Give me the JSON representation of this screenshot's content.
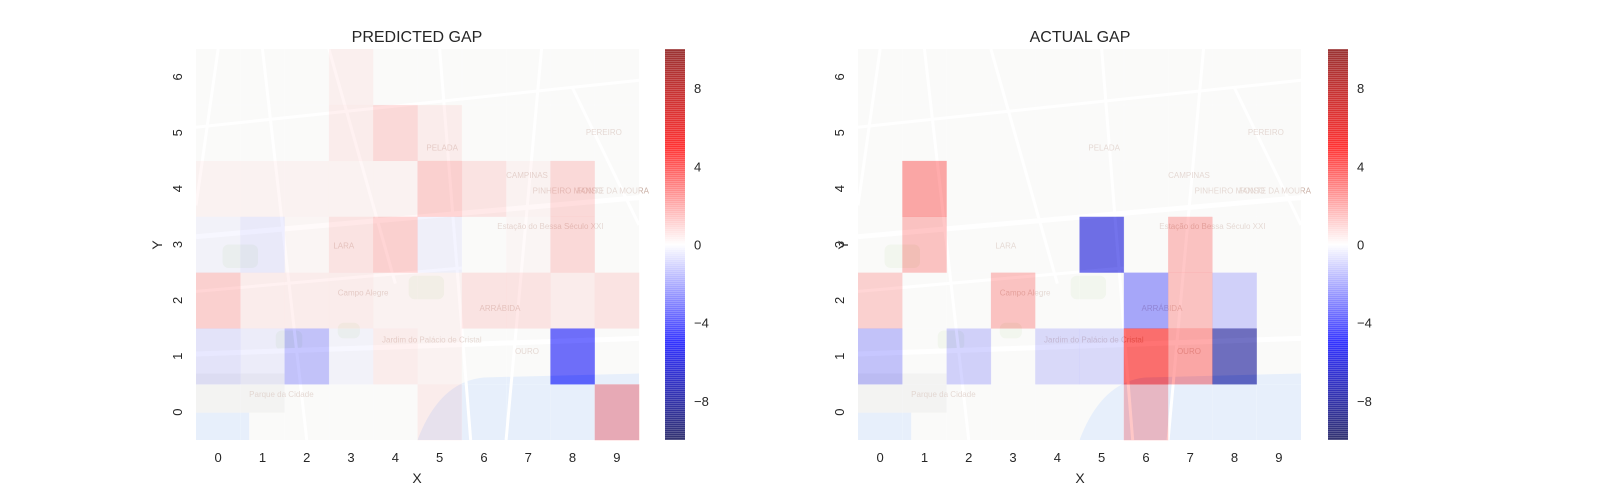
{
  "chart_data": [
    {
      "type": "heatmap",
      "title": "PREDICTED GAP",
      "xlabel": "X",
      "ylabel": "Y",
      "x": [
        0,
        1,
        2,
        3,
        4,
        5,
        6,
        7,
        8,
        9
      ],
      "y": [
        0,
        1,
        2,
        3,
        4,
        5,
        6
      ],
      "values_by_row": [
        [
          0,
          0,
          0,
          0,
          0,
          0.5,
          0,
          0,
          0,
          2.5
        ],
        [
          -0.8,
          -0.5,
          -2,
          -0.3,
          0.5,
          0.3,
          0,
          0,
          -5,
          0
        ],
        [
          1.5,
          0.5,
          0.5,
          0.5,
          0.3,
          0.3,
          0.8,
          0.8,
          0.5,
          0.8
        ],
        [
          -0.3,
          -0.6,
          0.2,
          0.8,
          1.5,
          -0.4,
          0,
          0.2,
          1.2,
          0
        ],
        [
          0.3,
          0.3,
          0.3,
          0.3,
          0.3,
          1.5,
          0.8,
          0.3,
          1.2,
          0
        ],
        [
          0,
          0,
          0,
          0.5,
          1.2,
          0.5,
          0,
          0,
          0,
          0
        ],
        [
          0,
          0,
          0,
          0.4,
          0,
          0,
          0,
          0,
          0,
          0
        ]
      ],
      "colorbar": {
        "min": -10,
        "max": 10,
        "ticks": [
          8,
          4,
          0,
          -4,
          -8
        ],
        "colormap": "seismic"
      },
      "background": "street-map"
    },
    {
      "type": "heatmap",
      "title": "ACTUAL GAP",
      "xlabel": "X",
      "ylabel": "Y",
      "x": [
        0,
        1,
        2,
        3,
        4,
        5,
        6,
        7,
        8,
        9
      ],
      "y": [
        0,
        1,
        2,
        3,
        4,
        5,
        6
      ],
      "values_by_row": [
        [
          0,
          0,
          0,
          0,
          0,
          0,
          2,
          0,
          0,
          0
        ],
        [
          -2,
          0,
          -1.5,
          0,
          -1.2,
          -1.2,
          5,
          3,
          -8,
          0
        ],
        [
          1.5,
          0,
          0,
          2,
          0,
          0,
          -3,
          2,
          -1.5,
          0
        ],
        [
          0,
          2,
          0,
          0,
          0,
          -6,
          0,
          2,
          0,
          0
        ],
        [
          0,
          3,
          0,
          0,
          0,
          0,
          0,
          0,
          0,
          0
        ],
        [
          0,
          0,
          0,
          0,
          0,
          0,
          0,
          0,
          0,
          0
        ],
        [
          0,
          0,
          0,
          0,
          0,
          0,
          0,
          0,
          0,
          0
        ]
      ],
      "colorbar": {
        "min": -10,
        "max": 10,
        "ticks": [
          8,
          4,
          0,
          -4,
          -8
        ],
        "colormap": "seismic"
      },
      "background": "street-map"
    }
  ],
  "map_labels": [
    "PELADA",
    "CAMPINAS",
    "PINHEIRO MANSO",
    "FONTE DA MOURA",
    "ARRÁBIDA",
    "OURO",
    "LARA",
    "Estação do Bessa Século XXI",
    "Jardim do Palácio de Cristal",
    "Campo Alegre",
    "PEREIRO",
    "Parque da Cidade"
  ]
}
